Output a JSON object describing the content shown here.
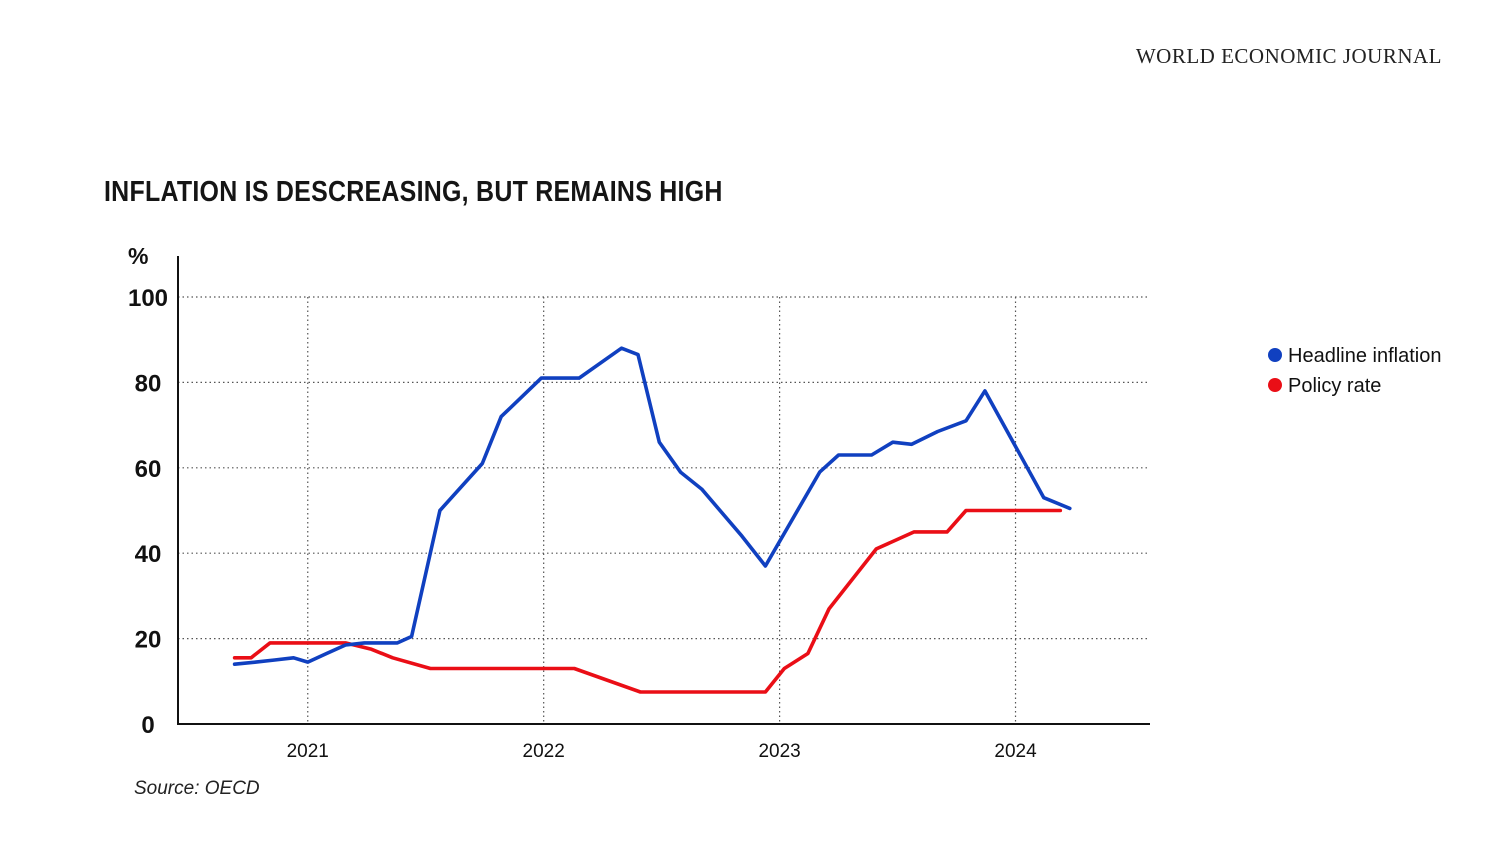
{
  "publisher": "WORLD ECONOMIC JOURNAL",
  "source": "Source: OECD",
  "chart_data": {
    "type": "line",
    "title": "INFLATION IS DESCREASING, BUT REMAINS HIGH",
    "y_unit": "%",
    "xlabel": "",
    "ylabel": "",
    "ylim": [
      0,
      100
    ],
    "xlim": [
      2020.45,
      2024.57
    ],
    "y_ticks": [
      0,
      20,
      40,
      60,
      80,
      100
    ],
    "x_ticks": [
      2021,
      2022,
      2023,
      2024
    ],
    "grid": "dotted",
    "legend_position": "right",
    "series": [
      {
        "name": "Headline inflation",
        "color": "#1040c0",
        "points": [
          [
            2020.69,
            14
          ],
          [
            2020.78,
            14.5
          ],
          [
            2020.86,
            15
          ],
          [
            2020.94,
            15.5
          ],
          [
            2021.0,
            14.5
          ],
          [
            2021.08,
            16.5
          ],
          [
            2021.16,
            18.5
          ],
          [
            2021.24,
            19
          ],
          [
            2021.32,
            19
          ],
          [
            2021.38,
            19
          ],
          [
            2021.44,
            20.5
          ],
          [
            2021.56,
            50
          ],
          [
            2021.74,
            61
          ],
          [
            2021.82,
            72
          ],
          [
            2021.99,
            81
          ],
          [
            2022.15,
            81
          ],
          [
            2022.33,
            88
          ],
          [
            2022.4,
            86.5
          ],
          [
            2022.49,
            66
          ],
          [
            2022.58,
            59
          ],
          [
            2022.67,
            55
          ],
          [
            2022.84,
            44
          ],
          [
            2022.94,
            37
          ],
          [
            2023.17,
            59
          ],
          [
            2023.25,
            63
          ],
          [
            2023.39,
            63
          ],
          [
            2023.48,
            66
          ],
          [
            2023.56,
            65.5
          ],
          [
            2023.67,
            68.5
          ],
          [
            2023.79,
            71
          ],
          [
            2023.87,
            78
          ],
          [
            2024.12,
            53
          ],
          [
            2024.23,
            50.5
          ]
        ]
      },
      {
        "name": "Policy rate",
        "color": "#ea0e16",
        "points": [
          [
            2020.69,
            15.5
          ],
          [
            2020.76,
            15.5
          ],
          [
            2020.84,
            19
          ],
          [
            2021.16,
            19
          ],
          [
            2021.27,
            17.5
          ],
          [
            2021.36,
            15.5
          ],
          [
            2021.52,
            13
          ],
          [
            2022.13,
            13
          ],
          [
            2022.41,
            7.5
          ],
          [
            2022.94,
            7.5
          ],
          [
            2023.02,
            13
          ],
          [
            2023.12,
            16.5
          ],
          [
            2023.21,
            27
          ],
          [
            2023.41,
            41
          ],
          [
            2023.57,
            45
          ],
          [
            2023.71,
            45
          ],
          [
            2023.79,
            50
          ],
          [
            2024.19,
            50
          ]
        ]
      }
    ]
  }
}
